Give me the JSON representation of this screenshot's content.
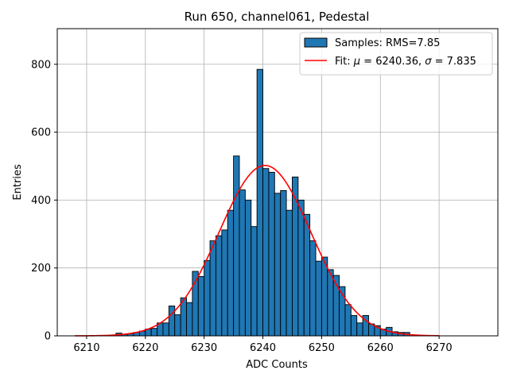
{
  "chart_data": {
    "type": "bar",
    "title": "Run 650, channel061, Pedestal",
    "xlabel": "ADC Counts",
    "ylabel": "Entries",
    "xlim": [
      6205,
      6280
    ],
    "ylim": [
      0,
      905
    ],
    "grid": true,
    "x_ticks": [
      6210,
      6220,
      6230,
      6240,
      6250,
      6260,
      6270
    ],
    "y_ticks": [
      0,
      200,
      400,
      600,
      800
    ],
    "legend_position": "top-right",
    "histogram": {
      "name": "Samples: RMS=7.85",
      "color": "#1f77b4",
      "bin_width": 1,
      "bin_starts": [
        6215,
        6216,
        6217,
        6218,
        6219,
        6220,
        6221,
        6222,
        6223,
        6224,
        6225,
        6226,
        6227,
        6228,
        6229,
        6230,
        6231,
        6232,
        6233,
        6234,
        6235,
        6236,
        6237,
        6238,
        6239,
        6240,
        6241,
        6242,
        6243,
        6244,
        6245,
        6246,
        6247,
        6248,
        6249,
        6250,
        6251,
        6252,
        6253,
        6254,
        6255,
        6256,
        6257,
        6258,
        6259,
        6260,
        6261,
        6262,
        6263,
        6264
      ],
      "counts": [
        8,
        4,
        6,
        10,
        14,
        20,
        22,
        38,
        38,
        88,
        62,
        112,
        98,
        190,
        175,
        222,
        280,
        295,
        312,
        370,
        530,
        430,
        400,
        322,
        785,
        493,
        482,
        420,
        428,
        370,
        468,
        400,
        358,
        280,
        220,
        232,
        195,
        178,
        145,
        92,
        60,
        38,
        60,
        35,
        30,
        20,
        25,
        12,
        10,
        10
      ]
    },
    "fit": {
      "name": "Fit: μ = 6240.36, σ = 7.835",
      "legend_prefix": "Fit: ",
      "mu_symbol": "μ",
      "sigma_symbol": "σ",
      "mu_text": " = 6240.36, ",
      "sigma_text": " = 7.835",
      "color": "#ff0000",
      "mu": 6240.36,
      "sigma": 7.835,
      "amplitude": 502,
      "x_range": [
        6208,
        6270
      ]
    },
    "tick_labels_x": [
      "6210",
      "6220",
      "6230",
      "6240",
      "6250",
      "6260",
      "6270"
    ],
    "tick_labels_y": [
      "0",
      "200",
      "400",
      "600",
      "800"
    ]
  }
}
